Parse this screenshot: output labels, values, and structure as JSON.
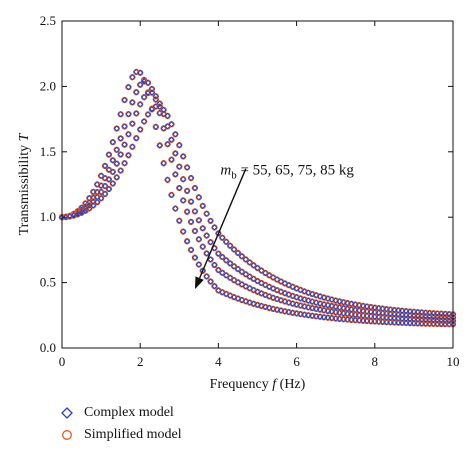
{
  "chart_data": {
    "type": "scatter",
    "xlabel_prefix": "Frequency ",
    "xlabel_var": "f",
    "xlabel_unit": " (Hz)",
    "ylabel_text": "Transmissibility ",
    "ylabel_var": "T",
    "xlim": [
      0,
      10
    ],
    "ylim": [
      0,
      2.5
    ],
    "xticks": [
      "0",
      "2",
      "4",
      "6",
      "8",
      "10"
    ],
    "xtick_values": [
      0,
      2,
      4,
      6,
      8,
      10
    ],
    "yticks": [
      "0.0",
      "0.5",
      "1.0",
      "1.5",
      "2.0",
      "2.5"
    ],
    "ytick_values": [
      0,
      0.5,
      1.0,
      1.5,
      2.0,
      2.5
    ],
    "annotation": {
      "var": "m",
      "sub": "b",
      "text": " = 55, 65, 75, 85 kg",
      "arrow_from": [
        4.7,
        1.37
      ],
      "arrow_to": [
        3.4,
        0.45
      ]
    },
    "series": [
      {
        "name": "Complex model",
        "marker": "diamond",
        "color": "#2b3fb5"
      },
      {
        "name": "Simplified model",
        "marker": "circle",
        "color": "#e05a2b"
      }
    ],
    "curves": [
      {
        "mb": 55,
        "peak_f": 2.1,
        "peak_T": 2.05,
        "f_end": 10,
        "T_end": 0.17
      },
      {
        "mb": 65,
        "peak_f": 2.3,
        "peak_T": 1.98,
        "f_end": 10,
        "T_end": 0.19
      },
      {
        "mb": 75,
        "peak_f": 2.45,
        "peak_T": 1.9,
        "f_end": 10,
        "T_end": 0.21
      },
      {
        "mb": 85,
        "peak_f": 2.65,
        "peak_T": 1.8,
        "f_end": 10,
        "T_end": 0.23
      }
    ]
  }
}
